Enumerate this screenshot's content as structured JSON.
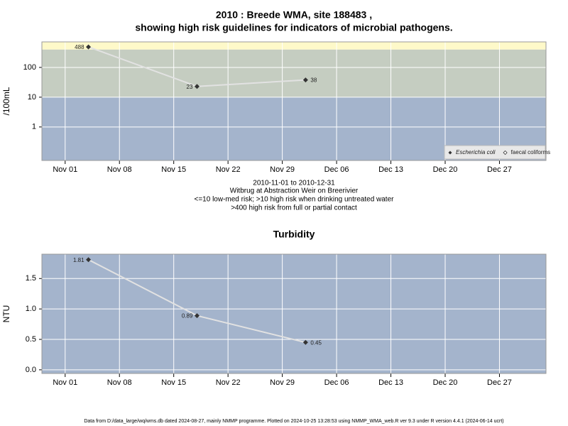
{
  "footer": "Data from D:/data_large/wq/wms.db dated 2024-08-27, mainly NMMP programme. Plotted on 2024-10-25 13:28:53 using NMMP_WMA_web.R ver 9.3 under R version 4.4.1 (2024-06-14 ucrt)",
  "chart_data": [
    {
      "type": "line",
      "title": [
        "2010 : Breede WMA, site 188483 ,",
        "showing high risk guidelines for indicators of microbial pathogens."
      ],
      "annotations": [
        "2010-11-01 to 2010-12-31",
        "Witbrug at Abstraction Weir on Breerivier",
        "<=10 low-med risk; >10 high risk when drinking untreated water",
        ">400 high risk from full or partial contact"
      ],
      "ylabel": "/100mL",
      "x": [
        "2010-11-04",
        "2010-11-18",
        "2010-12-02"
      ],
      "series": [
        {
          "name": "Escherichia coli",
          "color": "#333333",
          "line_color": "#e2e2e2",
          "values": [
            488,
            23,
            38
          ]
        },
        {
          "name": "faecal coliforms",
          "color": "#333333",
          "line_color": "#e2e2e2",
          "values": [
            null,
            null,
            null
          ]
        }
      ],
      "xlim": [
        "2010-10-29",
        "2011-01-02"
      ],
      "xticks": [
        {
          "value": "2010-11-01",
          "label": "Nov 01"
        },
        {
          "value": "2010-11-08",
          "label": "Nov 08"
        },
        {
          "value": "2010-11-15",
          "label": "Nov 15"
        },
        {
          "value": "2010-11-22",
          "label": "Nov 22"
        },
        {
          "value": "2010-11-29",
          "label": "Nov 29"
        },
        {
          "value": "2010-12-06",
          "label": "Dec 06"
        },
        {
          "value": "2010-12-13",
          "label": "Dec 13"
        },
        {
          "value": "2010-12-20",
          "label": "Dec 20"
        },
        {
          "value": "2010-12-27",
          "label": "Dec 27"
        }
      ],
      "ylim": [
        0.075,
        720
      ],
      "yticks": [
        1,
        10,
        100
      ],
      "ylog": true,
      "grid": true,
      "thresholds": [
        10,
        400
      ],
      "band_colors": [
        "#a4b4cc",
        "#c5cdc1",
        "#fef9c9"
      ],
      "legend": "bottom-right"
    },
    {
      "type": "line",
      "title": "Turbidity",
      "ylabel": "NTU",
      "x": [
        "2010-11-04",
        "2010-11-18",
        "2010-12-02"
      ],
      "values": [
        1.81,
        0.89,
        0.45
      ],
      "color": "#333333",
      "line_color": "#e2e2e2",
      "xlim": [
        "2010-10-29",
        "2011-01-02"
      ],
      "xticks": [
        {
          "value": "2010-11-01",
          "label": "Nov 01"
        },
        {
          "value": "2010-11-08",
          "label": "Nov 08"
        },
        {
          "value": "2010-11-15",
          "label": "Nov 15"
        },
        {
          "value": "2010-11-22",
          "label": "Nov 22"
        },
        {
          "value": "2010-11-29",
          "label": "Nov 29"
        },
        {
          "value": "2010-12-06",
          "label": "Dec 06"
        },
        {
          "value": "2010-12-13",
          "label": "Dec 13"
        },
        {
          "value": "2010-12-20",
          "label": "Dec 20"
        },
        {
          "value": "2010-12-27",
          "label": "Dec 27"
        }
      ],
      "ylim": [
        -0.06,
        1.9
      ],
      "yticks": [
        {
          "value": 0,
          "label": "0.0"
        },
        0.5,
        {
          "value": 1,
          "label": "1.0"
        },
        1.5
      ],
      "ylog": false,
      "grid": true,
      "background": "#a4b4cc"
    }
  ]
}
